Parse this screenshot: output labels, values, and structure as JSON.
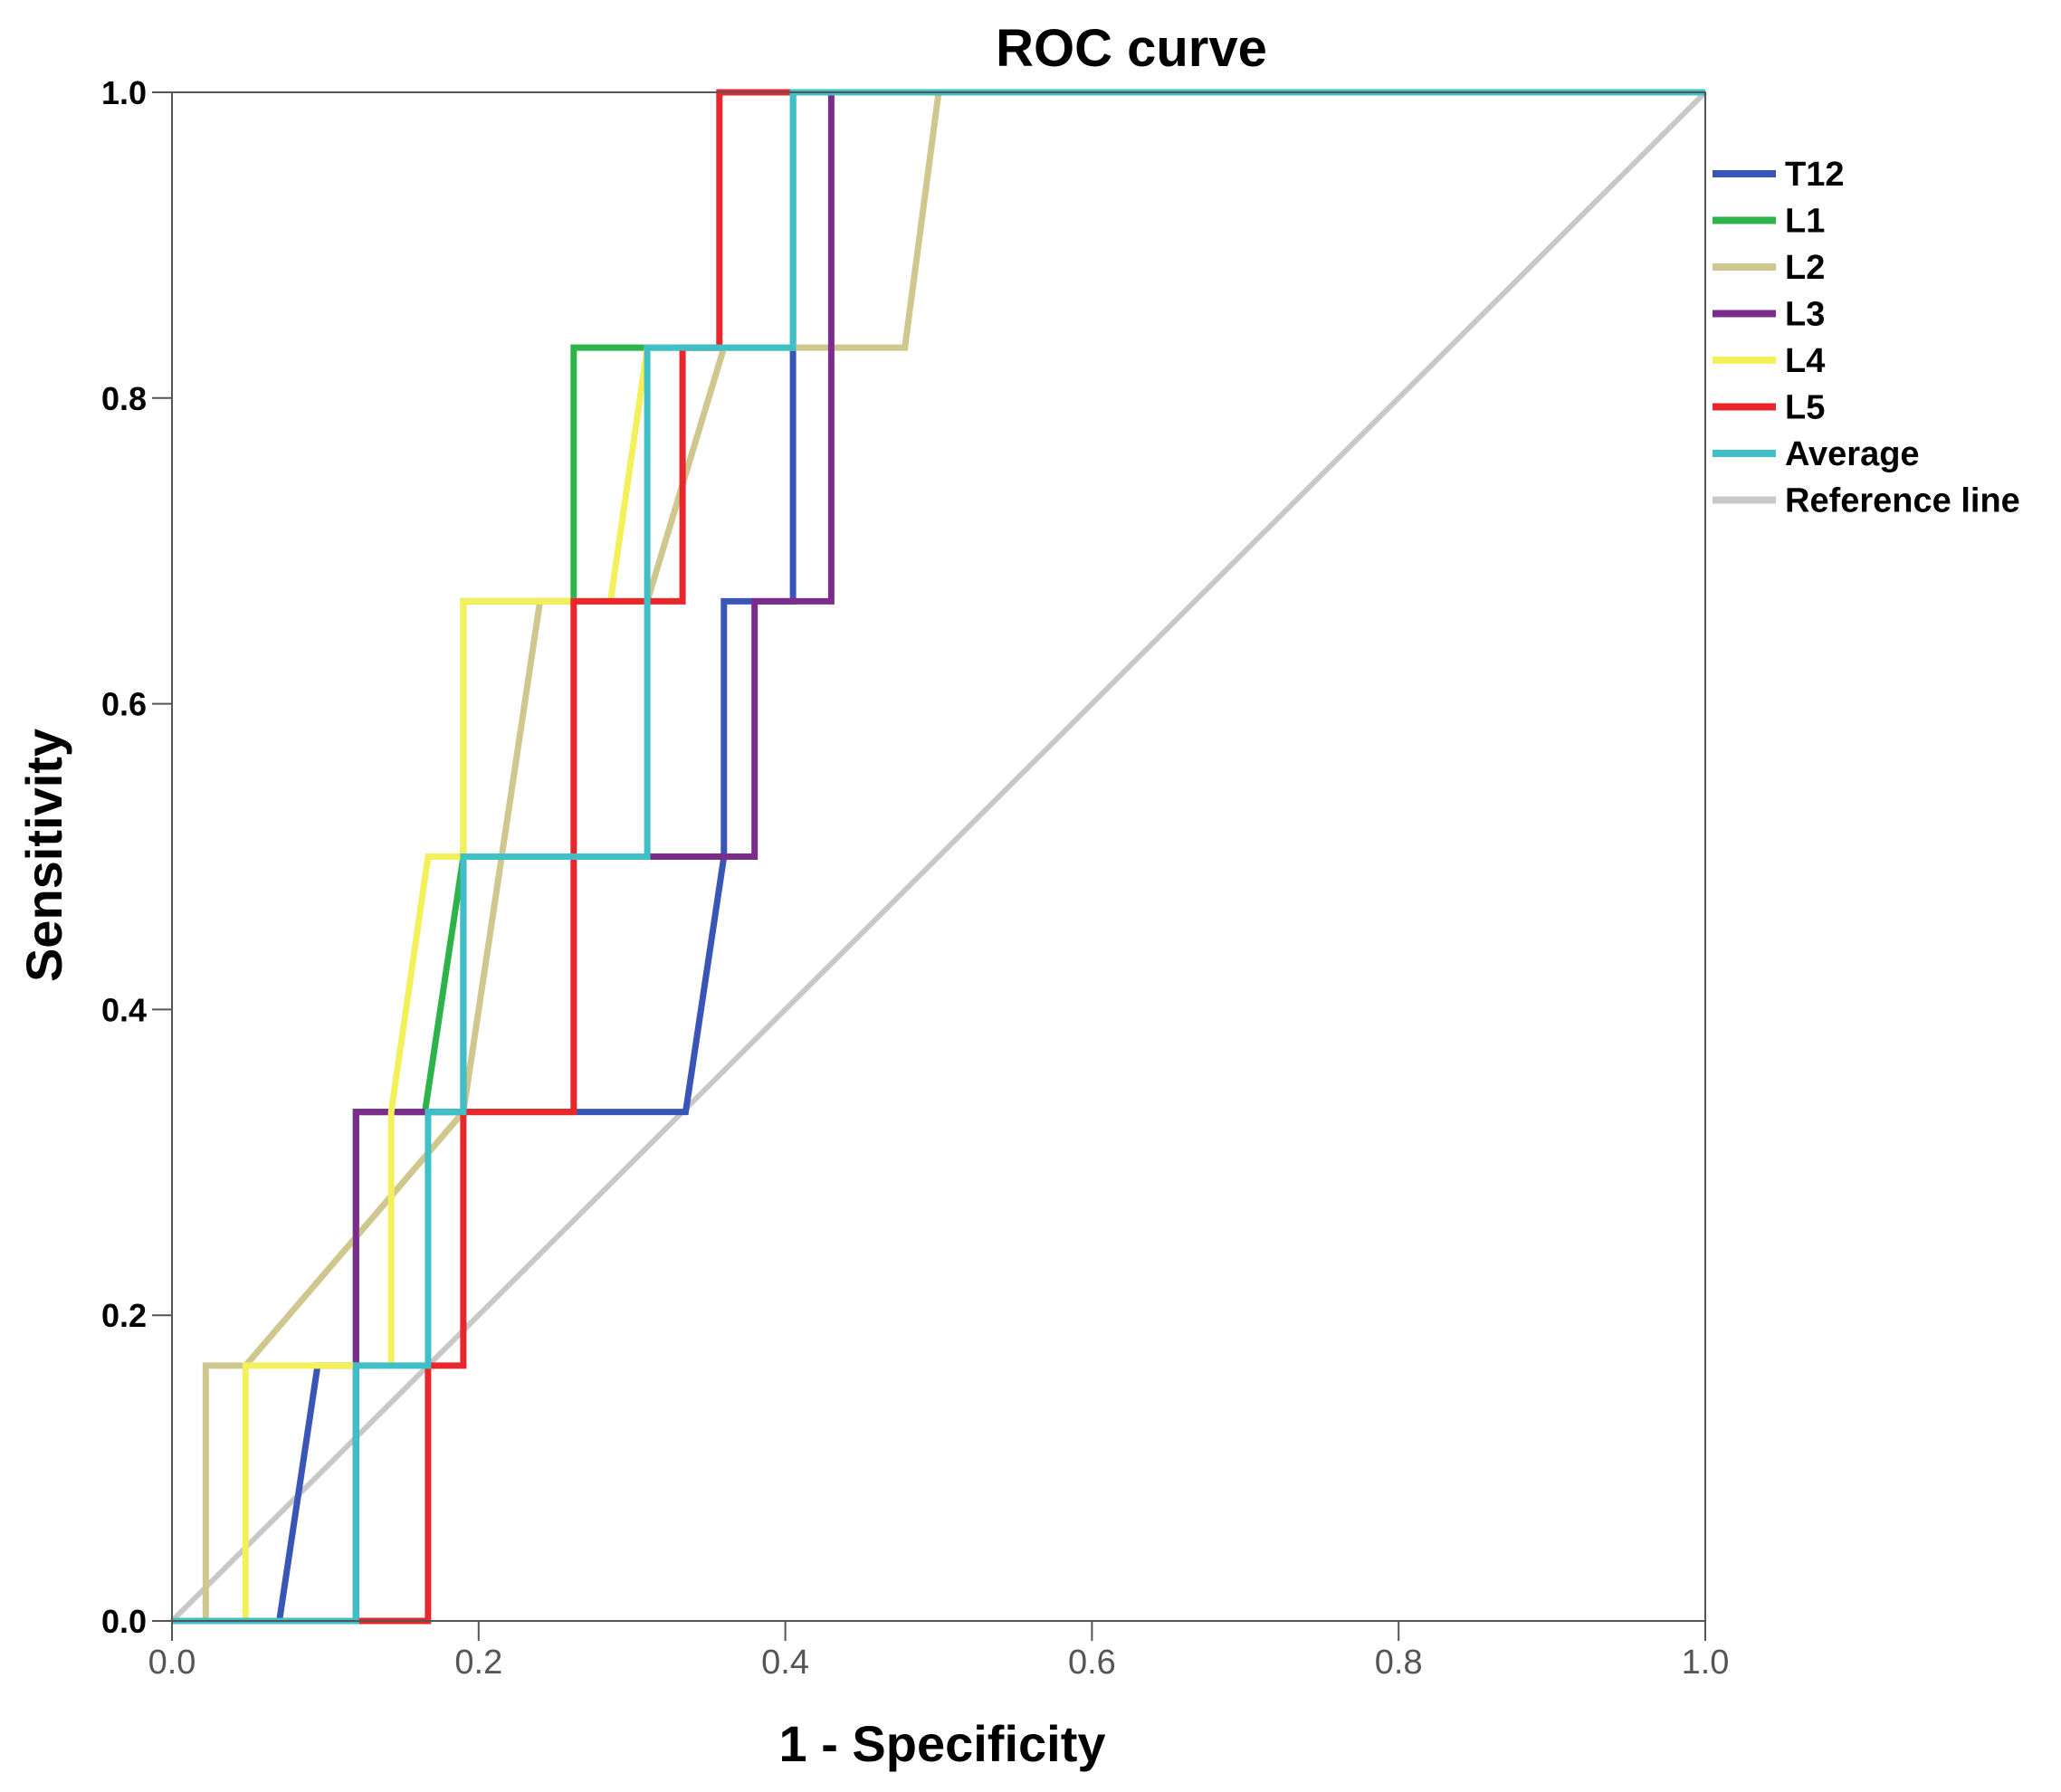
{
  "chart_data": {
    "type": "line",
    "title": "ROC curve",
    "xlabel": "1 - Specificity",
    "ylabel": "Sensitivity",
    "xlim": [
      0,
      1
    ],
    "ylim": [
      0,
      1
    ],
    "xticks": [
      "0.0",
      "0.2",
      "0.4",
      "0.6",
      "0.8",
      "1.0"
    ],
    "yticks": [
      "0.0",
      "0.2",
      "0.4",
      "0.6",
      "0.8",
      "1.0"
    ],
    "grid": false,
    "legend_position": "right",
    "series": [
      {
        "name": "T12",
        "color": "#3a55b8",
        "points": [
          [
            0,
            0
          ],
          [
            0.07,
            0
          ],
          [
            0.095,
            0.167
          ],
          [
            0.12,
            0.167
          ],
          [
            0.12,
            0.333
          ],
          [
            0.335,
            0.333
          ],
          [
            0.36,
            0.5
          ],
          [
            0.36,
            0.667
          ],
          [
            0.405,
            0.667
          ],
          [
            0.405,
            0.833
          ],
          [
            0.405,
            1.0
          ],
          [
            1.0,
            1.0
          ]
        ]
      },
      {
        "name": "L1",
        "color": "#2db34a",
        "points": [
          [
            0,
            0
          ],
          [
            0.12,
            0
          ],
          [
            0.12,
            0.333
          ],
          [
            0.165,
            0.333
          ],
          [
            0.19,
            0.5
          ],
          [
            0.19,
            0.667
          ],
          [
            0.262,
            0.667
          ],
          [
            0.262,
            0.833
          ],
          [
            0.405,
            0.833
          ],
          [
            0.405,
            1.0
          ],
          [
            1.0,
            1.0
          ]
        ]
      },
      {
        "name": "L2",
        "color": "#cfc78e",
        "points": [
          [
            0,
            0
          ],
          [
            0.022,
            0
          ],
          [
            0.022,
            0.167
          ],
          [
            0.048,
            0.167
          ],
          [
            0.19,
            0.333
          ],
          [
            0.24,
            0.667
          ],
          [
            0.31,
            0.667
          ],
          [
            0.36,
            0.833
          ],
          [
            0.478,
            0.833
          ],
          [
            0.5,
            1.0
          ],
          [
            1.0,
            1.0
          ]
        ]
      },
      {
        "name": "L3",
        "color": "#7b2d8c",
        "points": [
          [
            0,
            0
          ],
          [
            0.12,
            0
          ],
          [
            0.12,
            0.333
          ],
          [
            0.19,
            0.333
          ],
          [
            0.19,
            0.5
          ],
          [
            0.38,
            0.5
          ],
          [
            0.38,
            0.667
          ],
          [
            0.43,
            0.667
          ],
          [
            0.43,
            1.0
          ],
          [
            1.0,
            1.0
          ]
        ]
      },
      {
        "name": "L4",
        "color": "#f3f05a",
        "points": [
          [
            0,
            0
          ],
          [
            0.048,
            0
          ],
          [
            0.048,
            0.167
          ],
          [
            0.143,
            0.167
          ],
          [
            0.143,
            0.333
          ],
          [
            0.167,
            0.5
          ],
          [
            0.19,
            0.5
          ],
          [
            0.19,
            0.667
          ],
          [
            0.286,
            0.667
          ],
          [
            0.31,
            0.833
          ],
          [
            0.405,
            0.833
          ],
          [
            0.405,
            1.0
          ],
          [
            1.0,
            1.0
          ]
        ]
      },
      {
        "name": "L5",
        "color": "#e8262b",
        "points": [
          [
            0,
            0
          ],
          [
            0.167,
            0
          ],
          [
            0.167,
            0.167
          ],
          [
            0.19,
            0.167
          ],
          [
            0.19,
            0.333
          ],
          [
            0.262,
            0.333
          ],
          [
            0.262,
            0.667
          ],
          [
            0.333,
            0.667
          ],
          [
            0.333,
            0.833
          ],
          [
            0.357,
            0.833
          ],
          [
            0.357,
            1.0
          ],
          [
            1.0,
            1.0
          ]
        ]
      },
      {
        "name": "Average",
        "color": "#3fbfc6",
        "points": [
          [
            0,
            0
          ],
          [
            0.12,
            0
          ],
          [
            0.12,
            0.167
          ],
          [
            0.167,
            0.167
          ],
          [
            0.167,
            0.333
          ],
          [
            0.19,
            0.333
          ],
          [
            0.19,
            0.5
          ],
          [
            0.31,
            0.5
          ],
          [
            0.31,
            0.833
          ],
          [
            0.405,
            0.833
          ],
          [
            0.405,
            1.0
          ],
          [
            1.0,
            1.0
          ]
        ]
      },
      {
        "name": "Reference line",
        "color": "#c8c8c8",
        "points": [
          [
            0,
            0
          ],
          [
            1.0,
            1.0
          ]
        ]
      }
    ]
  }
}
